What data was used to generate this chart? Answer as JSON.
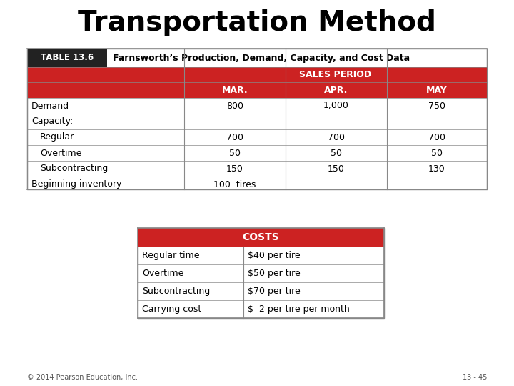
{
  "title": "Transportation Method",
  "title_fontsize": 28,
  "title_fontweight": "bold",
  "background_color": "#ffffff",
  "red_color": "#cc2222",
  "header_text_color": "#ffffff",
  "label_bg": "#222222",
  "label_text": "TABLE 13.6",
  "header_desc": "Farnsworth’s Production, Demand, Capacity, and Cost Data",
  "sales_period_label": "SALES PERIOD",
  "col_headers": [
    "MAR.",
    "APR.",
    "MAY"
  ],
  "rows": [
    {
      "label": "Demand",
      "indent": false,
      "values": [
        "800",
        "1,000",
        "750"
      ]
    },
    {
      "label": "Capacity:",
      "indent": false,
      "values": [
        "",
        "",
        ""
      ]
    },
    {
      "label": "Regular",
      "indent": true,
      "values": [
        "700",
        "700",
        "700"
      ]
    },
    {
      "label": "Overtime",
      "indent": true,
      "values": [
        "50",
        "50",
        "50"
      ]
    },
    {
      "label": "Subcontracting",
      "indent": true,
      "values": [
        "150",
        "150",
        "130"
      ]
    },
    {
      "label": "Beginning inventory",
      "indent": false,
      "values": [
        "100  tires",
        "",
        ""
      ]
    }
  ],
  "costs_label": "COSTS",
  "cost_rows": [
    {
      "label": "Regular time",
      "value": "$40 per tire"
    },
    {
      "label": "Overtime",
      "value": "$50 per tire"
    },
    {
      "label": "Subcontracting",
      "value": "$70 per tire"
    },
    {
      "label": "Carrying cost",
      "value": "$  2 per tire per month"
    }
  ],
  "footer_left": "© 2014 Pearson Education, Inc.",
  "footer_right": "13 - 45"
}
